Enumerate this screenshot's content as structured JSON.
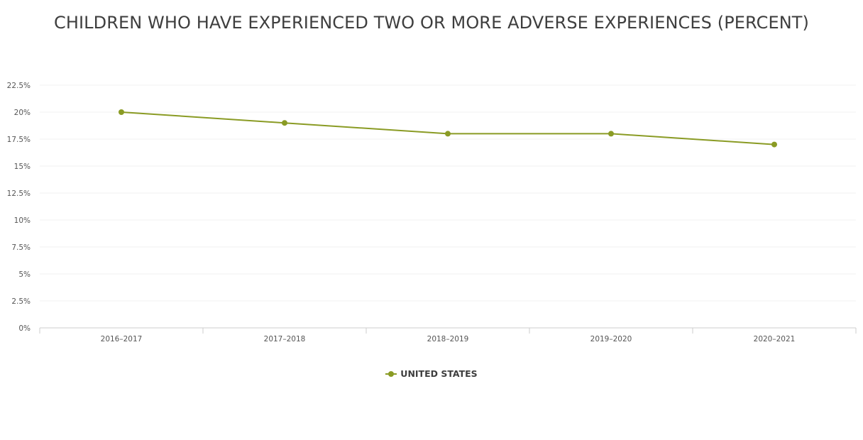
{
  "chart_data": {
    "type": "line",
    "title": "CHILDREN WHO HAVE EXPERIENCED TWO OR MORE ADVERSE EXPERIENCES (PERCENT)",
    "categories": [
      "2016-2017",
      "2017-2018",
      "2018-2019",
      "2019-2020",
      "2020-2021"
    ],
    "series": [
      {
        "name": "UNITED STATES",
        "color": "#8a9b24",
        "values": [
          20,
          19,
          18,
          18,
          17
        ]
      }
    ],
    "ylim": [
      0,
      22.5
    ],
    "yticks": [
      0,
      2.5,
      5,
      7.5,
      10,
      12.5,
      15,
      17.5,
      20,
      22.5
    ],
    "ytick_labels": [
      "0%",
      "2.5%",
      "5%",
      "7.5%",
      "10%",
      "12.5%",
      "15%",
      "17.5%",
      "20%",
      "22.5%"
    ],
    "xlabel": "",
    "ylabel": "",
    "grid": true,
    "legend_position": "bottom-center"
  }
}
